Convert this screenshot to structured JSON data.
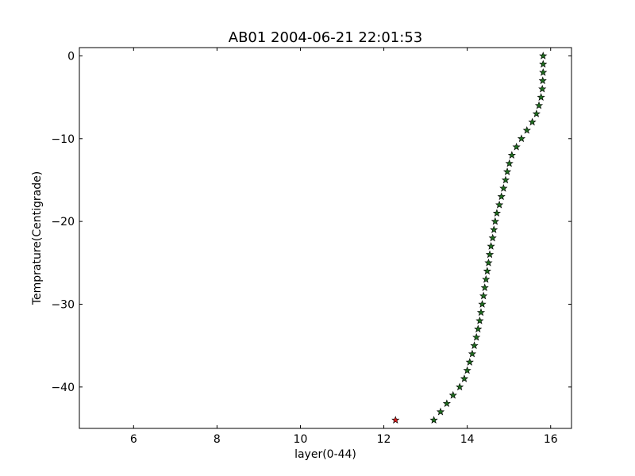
{
  "chart_data": {
    "type": "scatter",
    "title": "AB01 2004-06-21 22:01:53",
    "xlabel": "layer(0-44)",
    "ylabel": "Temprature(Centigrade)",
    "xlim": [
      4.7,
      16.5
    ],
    "ylim": [
      -45,
      1
    ],
    "xticks": [
      6,
      8,
      10,
      12,
      14,
      16
    ],
    "yticks": [
      0,
      -10,
      -20,
      -30,
      -40
    ],
    "grid": false,
    "marker": "star",
    "colors": {
      "default": "#1f6b1f",
      "highlight": "#d62020",
      "edge": "#000000"
    },
    "series": [
      {
        "x": [
          15.82,
          15.82,
          15.82,
          15.81,
          15.8,
          15.77,
          15.72,
          15.66,
          15.56,
          15.43,
          15.3,
          15.18,
          15.07,
          15.01,
          14.96,
          14.92,
          14.87,
          14.82,
          14.77,
          14.71,
          14.67,
          14.64,
          14.61,
          14.57,
          14.54,
          14.51,
          14.48,
          14.45,
          14.42,
          14.39,
          14.36,
          14.33,
          14.3,
          14.26,
          14.22,
          14.17,
          14.12,
          14.06,
          14.0,
          13.93,
          13.82,
          13.66,
          13.51,
          13.36,
          13.2
        ],
        "y": [
          0,
          -1,
          -2,
          -3,
          -4,
          -5,
          -6,
          -7,
          -8,
          -9,
          -10,
          -11,
          -12,
          -13,
          -14,
          -15,
          -16,
          -17,
          -18,
          -19,
          -20,
          -21,
          -22,
          -23,
          -24,
          -25,
          -26,
          -27,
          -28,
          -29,
          -30,
          -31,
          -32,
          -33,
          -34,
          -35,
          -36,
          -37,
          -38,
          -39,
          -40,
          -41,
          -42,
          -43,
          -44
        ]
      },
      {
        "highlight": true,
        "x": [
          12.28
        ],
        "y": [
          -44
        ]
      }
    ]
  }
}
